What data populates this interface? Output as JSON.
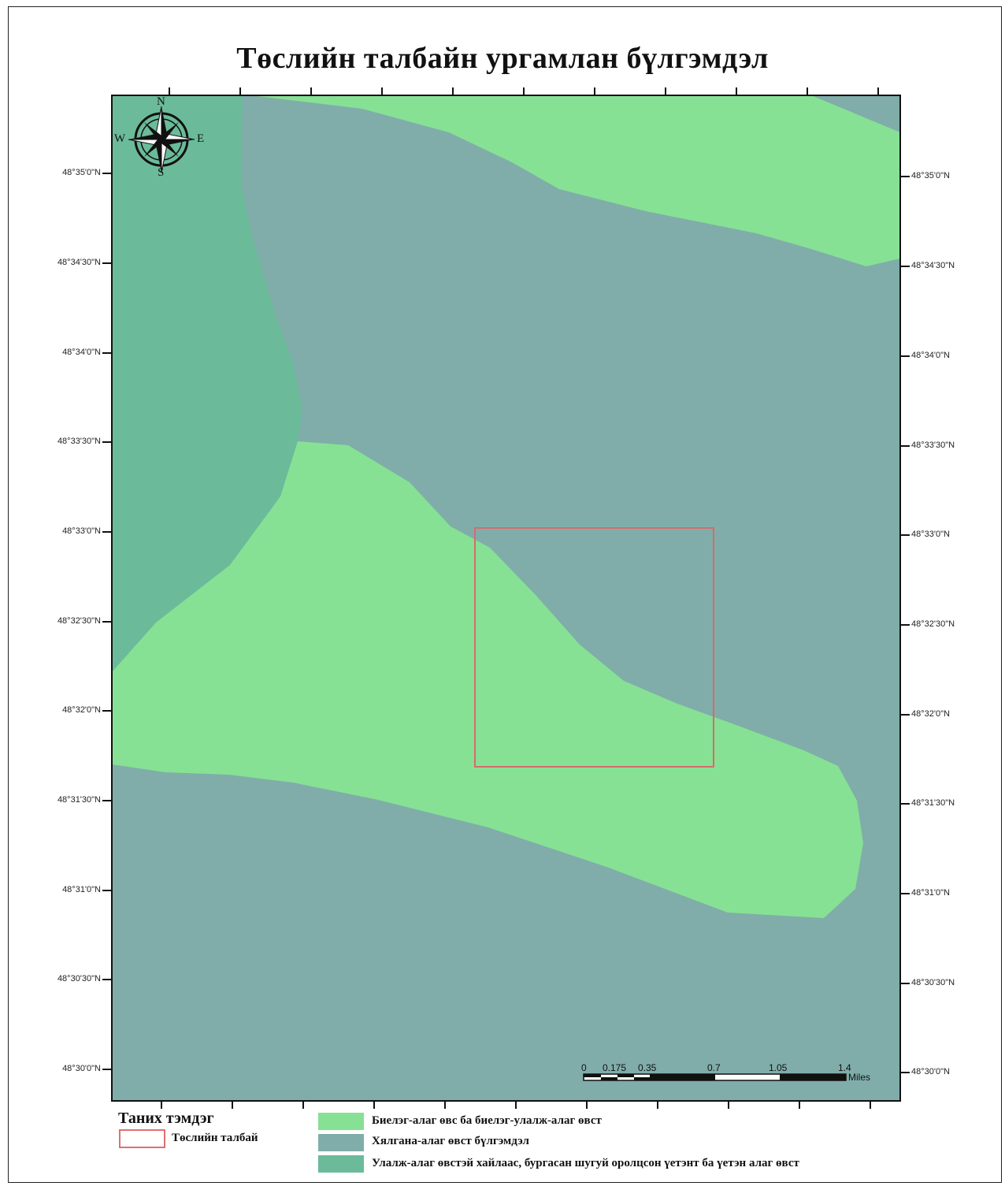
{
  "title": "Төслийн талбайн ургамлан бүлгэмдэл",
  "latitude_labels": [
    "48°35'0\"N",
    "48°34'30\"N",
    "48°34'0\"N",
    "48°33'30\"N",
    "48°33'0\"N",
    "48°32'30\"N",
    "48°32'0\"N",
    "48°31'30\"N",
    "48°31'0\"N",
    "48°30'30\"N",
    "48°30'0\"N"
  ],
  "compass": {
    "n": "N",
    "s": "S",
    "e": "E",
    "w": "W",
    "icon": "north-arrow-compass-rose"
  },
  "scalebar": {
    "ticks": [
      "0",
      "0.175",
      "0.35",
      "0.7",
      "1.05",
      "1.4"
    ],
    "unit": "Miles"
  },
  "legend": {
    "title": "Таних тэмдэг",
    "project_area": {
      "label": "Төслийн талбай",
      "color": "#e07070"
    },
    "classes": [
      {
        "label": "Биелэг-алаг өвс ба биелэг-улалж-алаг өвст",
        "color": "#86e194"
      },
      {
        "label": "Хялгана-алаг өвст бүлгэмдэл",
        "color": "#80ada9"
      },
      {
        "label": "Улалж-алаг өвстэй хайлаас, бургасан шугуй оролцсон үетэнт ба үетэн алаг өвст",
        "color": "#6bbb9a"
      }
    ]
  }
}
